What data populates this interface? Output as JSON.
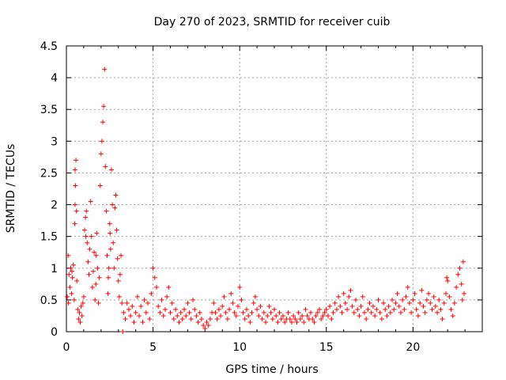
{
  "chart_data": {
    "type": "scatter",
    "title": "Day 270 of 2023, SRMTID for receiver cuib",
    "xlabel": "GPS time / hours",
    "ylabel": "SRMTID / TECUs",
    "xlim": [
      0,
      24
    ],
    "ylim": [
      0,
      4.5
    ],
    "xticks": [
      "0",
      "5",
      "10",
      "15",
      "20"
    ],
    "yticks": [
      "0",
      "0.5",
      "1",
      "1.5",
      "2",
      "2.5",
      "3",
      "3.5",
      "4",
      "4.5"
    ],
    "grid": true,
    "marker": "+",
    "series": [
      {
        "name": "SRMTID",
        "color": "#ff0000",
        "points": [
          [
            0.05,
            0.55
          ],
          [
            0.1,
            1.2
          ],
          [
            0.15,
            0.9
          ],
          [
            0.2,
            0.7
          ],
          [
            0.25,
            1.0
          ],
          [
            0.3,
            0.6
          ],
          [
            0.35,
            0.85
          ],
          [
            0.4,
            1.05
          ],
          [
            0.45,
            0.5
          ],
          [
            0.5,
            2.55
          ],
          [
            0.52,
            2.3
          ],
          [
            0.55,
            2.7
          ],
          [
            0.5,
            2.0
          ],
          [
            0.48,
            1.7
          ],
          [
            0.58,
            1.9
          ],
          [
            0.6,
            0.8
          ],
          [
            0.65,
            0.35
          ],
          [
            0.7,
            0.2
          ],
          [
            0.75,
            0.3
          ],
          [
            0.8,
            0.15
          ],
          [
            0.85,
            0.4
          ],
          [
            0.9,
            0.25
          ],
          [
            0.95,
            0.45
          ],
          [
            1.0,
            0.55
          ],
          [
            1.05,
            1.6
          ],
          [
            1.1,
            1.8
          ],
          [
            1.15,
            1.9
          ],
          [
            1.2,
            1.4
          ],
          [
            1.25,
            1.1
          ],
          [
            1.3,
            0.9
          ],
          [
            1.35,
            1.3
          ],
          [
            1.4,
            2.05
          ],
          [
            1.45,
            1.5
          ],
          [
            1.5,
            0.7
          ],
          [
            1.55,
            0.95
          ],
          [
            1.6,
            1.25
          ],
          [
            1.65,
            0.5
          ],
          [
            1.7,
            0.75
          ],
          [
            1.75,
            1.55
          ],
          [
            1.8,
            1.0
          ],
          [
            1.85,
            0.45
          ],
          [
            1.9,
            0.85
          ],
          [
            1.95,
            2.3
          ],
          [
            2.0,
            2.8
          ],
          [
            2.05,
            3.0
          ],
          [
            2.1,
            3.3
          ],
          [
            2.15,
            3.55
          ],
          [
            2.2,
            4.13
          ],
          [
            2.25,
            2.6
          ],
          [
            2.3,
            1.9
          ],
          [
            2.35,
            1.2
          ],
          [
            2.4,
            0.6
          ],
          [
            2.45,
            1.0
          ],
          [
            2.5,
            1.7
          ],
          [
            2.55,
            1.3
          ],
          [
            2.6,
            2.55
          ],
          [
            2.65,
            2.0
          ],
          [
            2.7,
            1.4
          ],
          [
            2.75,
            1.0
          ],
          [
            2.8,
            1.95
          ],
          [
            2.85,
            2.15
          ],
          [
            2.9,
            1.6
          ],
          [
            2.95,
            1.15
          ],
          [
            3.0,
            0.8
          ],
          [
            3.05,
            0.55
          ],
          [
            3.1,
            0.9
          ],
          [
            3.15,
            1.2
          ],
          [
            3.2,
            0.45
          ],
          [
            3.3,
            0.3
          ],
          [
            3.4,
            0.2
          ],
          [
            3.5,
            0.45
          ],
          [
            3.6,
            0.35
          ],
          [
            3.7,
            0.25
          ],
          [
            3.8,
            0.4
          ],
          [
            3.9,
            0.15
          ],
          [
            4.0,
            0.3
          ],
          [
            4.1,
            0.55
          ],
          [
            4.2,
            0.25
          ],
          [
            4.3,
            0.4
          ],
          [
            4.4,
            0.15
          ],
          [
            4.5,
            0.5
          ],
          [
            4.6,
            0.3
          ],
          [
            4.7,
            0.45
          ],
          [
            4.8,
            0.2
          ],
          [
            4.9,
            0.6
          ],
          [
            5.0,
            1.0
          ],
          [
            5.1,
            0.85
          ],
          [
            5.2,
            0.7
          ],
          [
            5.3,
            0.4
          ],
          [
            5.4,
            0.3
          ],
          [
            5.5,
            0.5
          ],
          [
            5.6,
            0.25
          ],
          [
            5.7,
            0.35
          ],
          [
            5.8,
            0.55
          ],
          [
            5.9,
            0.7
          ],
          [
            6.0,
            0.3
          ],
          [
            6.1,
            0.45
          ],
          [
            6.2,
            0.2
          ],
          [
            6.3,
            0.35
          ],
          [
            6.4,
            0.25
          ],
          [
            6.5,
            0.15
          ],
          [
            6.6,
            0.3
          ],
          [
            6.7,
            0.2
          ],
          [
            6.8,
            0.35
          ],
          [
            6.9,
            0.25
          ],
          [
            7.0,
            0.45
          ],
          [
            7.1,
            0.3
          ],
          [
            7.2,
            0.2
          ],
          [
            7.3,
            0.5
          ],
          [
            7.4,
            0.35
          ],
          [
            7.5,
            0.25
          ],
          [
            7.6,
            0.15
          ],
          [
            7.7,
            0.3
          ],
          [
            7.8,
            0.2
          ],
          [
            7.9,
            0.1
          ],
          [
            8.0,
            0.05
          ],
          [
            8.1,
            0.15
          ],
          [
            8.2,
            0.1
          ],
          [
            8.3,
            0.2
          ],
          [
            8.4,
            0.3
          ],
          [
            8.5,
            0.45
          ],
          [
            8.6,
            0.3
          ],
          [
            8.7,
            0.2
          ],
          [
            8.8,
            0.35
          ],
          [
            8.9,
            0.25
          ],
          [
            9.0,
            0.4
          ],
          [
            9.1,
            0.55
          ],
          [
            9.2,
            0.3
          ],
          [
            9.3,
            0.2
          ],
          [
            9.4,
            0.35
          ],
          [
            9.5,
            0.6
          ],
          [
            9.6,
            0.45
          ],
          [
            9.7,
            0.3
          ],
          [
            9.8,
            0.25
          ],
          [
            9.9,
            0.4
          ],
          [
            10.0,
            0.7
          ],
          [
            10.1,
            0.5
          ],
          [
            10.2,
            0.3
          ],
          [
            10.3,
            0.2
          ],
          [
            10.4,
            0.35
          ],
          [
            10.5,
            0.25
          ],
          [
            10.6,
            0.15
          ],
          [
            10.7,
            0.3
          ],
          [
            10.8,
            0.45
          ],
          [
            10.9,
            0.55
          ],
          [
            11.0,
            0.35
          ],
          [
            11.1,
            0.25
          ],
          [
            11.2,
            0.4
          ],
          [
            11.3,
            0.2
          ],
          [
            11.4,
            0.3
          ],
          [
            11.5,
            0.15
          ],
          [
            11.6,
            0.25
          ],
          [
            11.7,
            0.4
          ],
          [
            11.8,
            0.3
          ],
          [
            11.9,
            0.2
          ],
          [
            12.0,
            0.35
          ],
          [
            12.1,
            0.25
          ],
          [
            12.2,
            0.15
          ],
          [
            12.3,
            0.3
          ],
          [
            12.4,
            0.2
          ],
          [
            12.5,
            0.25
          ],
          [
            12.6,
            0.15
          ],
          [
            12.7,
            0.2
          ],
          [
            12.8,
            0.3
          ],
          [
            12.9,
            0.2
          ],
          [
            13.0,
            0.15
          ],
          [
            13.1,
            0.25
          ],
          [
            13.2,
            0.2
          ],
          [
            13.3,
            0.15
          ],
          [
            13.4,
            0.3
          ],
          [
            13.5,
            0.2
          ],
          [
            13.6,
            0.25
          ],
          [
            13.7,
            0.15
          ],
          [
            13.8,
            0.35
          ],
          [
            13.9,
            0.25
          ],
          [
            14.0,
            0.2
          ],
          [
            14.1,
            0.3
          ],
          [
            14.2,
            0.2
          ],
          [
            14.3,
            0.15
          ],
          [
            14.4,
            0.25
          ],
          [
            14.5,
            0.3
          ],
          [
            14.6,
            0.35
          ],
          [
            14.7,
            0.2
          ],
          [
            14.8,
            0.25
          ],
          [
            14.9,
            0.3
          ],
          [
            15.0,
            0.35
          ],
          [
            15.1,
            0.25
          ],
          [
            15.2,
            0.4
          ],
          [
            15.3,
            0.2
          ],
          [
            15.4,
            0.3
          ],
          [
            15.5,
            0.45
          ],
          [
            15.6,
            0.35
          ],
          [
            15.7,
            0.55
          ],
          [
            15.8,
            0.4
          ],
          [
            15.9,
            0.3
          ],
          [
            16.0,
            0.6
          ],
          [
            16.1,
            0.45
          ],
          [
            16.2,
            0.35
          ],
          [
            16.3,
            0.55
          ],
          [
            16.4,
            0.65
          ],
          [
            16.5,
            0.4
          ],
          [
            16.6,
            0.3
          ],
          [
            16.7,
            0.5
          ],
          [
            16.8,
            0.35
          ],
          [
            16.9,
            0.25
          ],
          [
            17.0,
            0.4
          ],
          [
            17.1,
            0.55
          ],
          [
            17.2,
            0.3
          ],
          [
            17.3,
            0.2
          ],
          [
            17.4,
            0.35
          ],
          [
            17.5,
            0.45
          ],
          [
            17.6,
            0.3
          ],
          [
            17.7,
            0.4
          ],
          [
            17.8,
            0.25
          ],
          [
            17.9,
            0.35
          ],
          [
            18.0,
            0.5
          ],
          [
            18.1,
            0.3
          ],
          [
            18.2,
            0.2
          ],
          [
            18.3,
            0.45
          ],
          [
            18.4,
            0.35
          ],
          [
            18.5,
            0.25
          ],
          [
            18.6,
            0.4
          ],
          [
            18.7,
            0.3
          ],
          [
            18.8,
            0.5
          ],
          [
            18.9,
            0.35
          ],
          [
            19.0,
            0.45
          ],
          [
            19.1,
            0.6
          ],
          [
            19.2,
            0.4
          ],
          [
            19.3,
            0.3
          ],
          [
            19.4,
            0.5
          ],
          [
            19.5,
            0.35
          ],
          [
            19.6,
            0.55
          ],
          [
            19.7,
            0.7
          ],
          [
            19.8,
            0.45
          ],
          [
            19.9,
            0.3
          ],
          [
            20.0,
            0.5
          ],
          [
            20.1,
            0.6
          ],
          [
            20.2,
            0.35
          ],
          [
            20.3,
            0.25
          ],
          [
            20.4,
            0.45
          ],
          [
            20.5,
            0.65
          ],
          [
            20.6,
            0.4
          ],
          [
            20.7,
            0.3
          ],
          [
            20.8,
            0.5
          ],
          [
            20.9,
            0.6
          ],
          [
            21.0,
            0.45
          ],
          [
            21.1,
            0.35
          ],
          [
            21.2,
            0.55
          ],
          [
            21.3,
            0.4
          ],
          [
            21.4,
            0.3
          ],
          [
            21.5,
            0.5
          ],
          [
            21.6,
            0.35
          ],
          [
            21.7,
            0.2
          ],
          [
            21.8,
            0.45
          ],
          [
            21.9,
            0.6
          ],
          [
            22.0,
            0.8
          ],
          [
            22.1,
            0.55
          ],
          [
            22.2,
            0.35
          ],
          [
            22.3,
            0.25
          ],
          [
            22.4,
            0.45
          ],
          [
            22.5,
            0.7
          ],
          [
            22.6,
            0.9
          ],
          [
            22.7,
            1.0
          ],
          [
            22.8,
            0.75
          ],
          [
            22.9,
            1.1
          ],
          [
            22.95,
            0.6
          ],
          [
            21.95,
            0.85
          ],
          [
            22.85,
            0.5
          ],
          [
            0.12,
            0.45
          ],
          [
            0.32,
            0.95
          ],
          [
            1.12,
            1.5
          ],
          [
            1.72,
            1.2
          ],
          [
            2.42,
            0.85
          ],
          [
            2.52,
            1.55
          ],
          [
            3.25,
            0.0
          ]
        ]
      }
    ]
  }
}
